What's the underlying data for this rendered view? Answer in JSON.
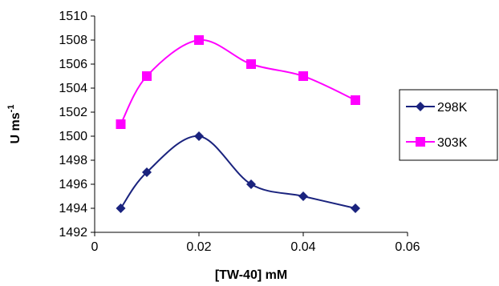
{
  "chart_data": {
    "type": "line",
    "xlabel": "[TW-40] mM",
    "ylabel": {
      "main": "U ms",
      "superscript": "-1"
    },
    "xlim": [
      0,
      0.06
    ],
    "ylim": [
      1492,
      1510
    ],
    "xticks": [
      "0",
      "0.02",
      "0.04",
      "0.06"
    ],
    "yticks": [
      "1492",
      "1494",
      "1496",
      "1498",
      "1500",
      "1502",
      "1504",
      "1506",
      "1508",
      "1510"
    ],
    "grid": false,
    "legend_position": "right",
    "series": [
      {
        "name": "298K",
        "color": "#1a237e",
        "marker": "diamond",
        "x": [
          0.005,
          0.01,
          0.02,
          0.03,
          0.04,
          0.05
        ],
        "y": [
          1494,
          1497,
          1500,
          1496,
          1495,
          1494
        ]
      },
      {
        "name": "303K",
        "color": "#ff00ff",
        "marker": "square",
        "x": [
          0.005,
          0.01,
          0.02,
          0.03,
          0.04,
          0.05
        ],
        "y": [
          1501,
          1505,
          1508,
          1506,
          1505,
          1503
        ]
      }
    ]
  }
}
